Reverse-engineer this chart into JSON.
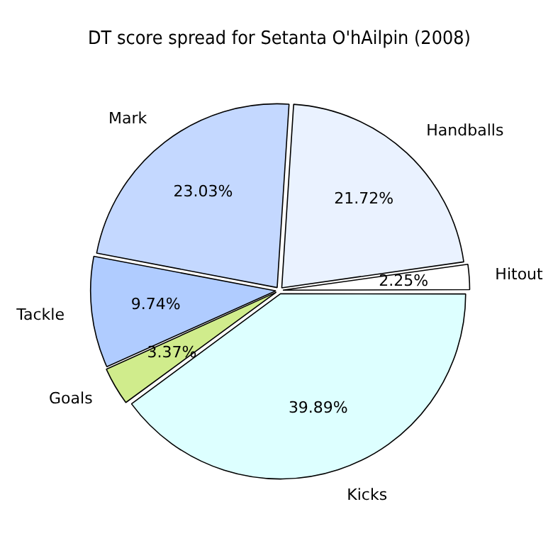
{
  "chart_data": {
    "type": "pie",
    "title": "DT score spread for Setanta O'hAilpin (2008)",
    "categories": [
      "Kicks",
      "Goals",
      "Tackle",
      "Mark",
      "Handballs",
      "Hitout"
    ],
    "values": [
      39.89,
      3.37,
      9.74,
      23.03,
      21.72,
      2.25
    ],
    "value_labels": [
      "39.89%",
      "3.37%",
      "9.74%",
      "23.03%",
      "21.72%",
      "2.25%"
    ],
    "colors": [
      "#ddffff",
      "#d0ec8c",
      "#b0ccff",
      "#c4d8ff",
      "#eaf2ff",
      "#ffffff"
    ],
    "legend": false
  }
}
